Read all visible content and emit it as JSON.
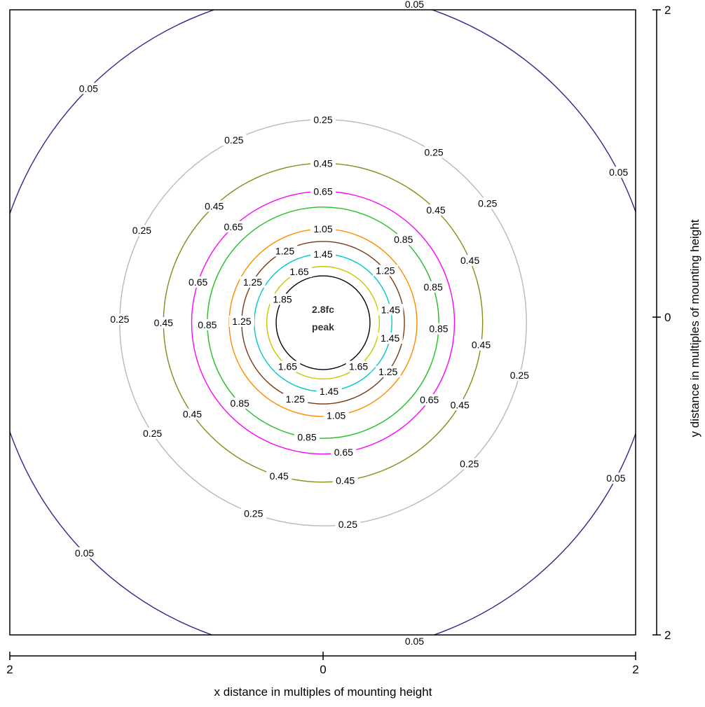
{
  "chart_data": {
    "type": "contour",
    "title": "",
    "xlabel": "x distance in multiples of mounting height",
    "ylabel": "y distance in multiples of mounting height",
    "xlim": [
      -2,
      2
    ],
    "ylim": [
      -2,
      2
    ],
    "x_tick_labels": [
      "2",
      "0",
      "2"
    ],
    "y_tick_labels": [
      "2",
      "0",
      "2"
    ],
    "grid": false,
    "legend": "none",
    "peak": {
      "value_text": "2.8fc",
      "label_text": "peak"
    },
    "levels": [
      {
        "value": 0.05,
        "radius": 2.12,
        "color": "#3f1f8f",
        "labels": [
          {
            "text": "0.05",
            "angle": 135
          },
          {
            "text": "0.05",
            "angle": 74
          },
          {
            "text": "0.05",
            "angle": 27
          },
          {
            "text": "0.05",
            "angle": -28
          },
          {
            "text": "0.05",
            "angle": -74
          },
          {
            "text": "0.05",
            "angle": -136
          }
        ]
      },
      {
        "value": 0.25,
        "radius": 1.3,
        "color": "#b8b8b8",
        "labels": [
          {
            "text": "0.25",
            "angle": 90
          },
          {
            "text": "0.25",
            "angle": 116
          },
          {
            "text": "0.25",
            "angle": 57
          },
          {
            "text": "0.25",
            "angle": 153
          },
          {
            "text": "0.25",
            "angle": 36
          },
          {
            "text": "0.25",
            "angle": 179
          },
          {
            "text": "0.25",
            "angle": -15
          },
          {
            "text": "0.25",
            "angle": -147
          },
          {
            "text": "0.25",
            "angle": -44
          },
          {
            "text": "0.25",
            "angle": -110
          },
          {
            "text": "0.25",
            "angle": -83
          }
        ]
      },
      {
        "value": 0.45,
        "radius": 1.02,
        "color": "#8a8a1a",
        "labels": [
          {
            "text": "0.45",
            "angle": 90
          },
          {
            "text": "0.45",
            "angle": 133
          },
          {
            "text": "0.45",
            "angle": 45
          },
          {
            "text": "0.45",
            "angle": 23
          },
          {
            "text": "0.45",
            "angle": -180
          },
          {
            "text": "0.45",
            "angle": -8
          },
          {
            "text": "0.45",
            "angle": -145
          },
          {
            "text": "0.45",
            "angle": -31
          },
          {
            "text": "0.45",
            "angle": -106
          },
          {
            "text": "0.45",
            "angle": -82
          }
        ]
      },
      {
        "value": 0.65,
        "radius": 0.84,
        "color": "#ff00ff",
        "labels": [
          {
            "text": "0.65",
            "angle": 90
          },
          {
            "text": "0.65",
            "angle": 133
          },
          {
            "text": "0.65",
            "angle": 162
          },
          {
            "text": "0.65",
            "angle": -36
          },
          {
            "text": "0.65",
            "angle": -81
          }
        ]
      },
      {
        "value": 0.85,
        "radius": 0.74,
        "color": "#22c022",
        "labels": [
          {
            "text": "0.85",
            "angle": 46
          },
          {
            "text": "0.85",
            "angle": 18
          },
          {
            "text": "0.85",
            "angle": -179
          },
          {
            "text": "0.85",
            "angle": -3
          },
          {
            "text": "0.85",
            "angle": -136
          },
          {
            "text": "0.85",
            "angle": -98
          }
        ]
      },
      {
        "value": 1.05,
        "radius": 0.6,
        "color": "#ff8c00",
        "labels": [
          {
            "text": "1.05",
            "angle": 90
          },
          {
            "text": "1.05",
            "angle": -82
          }
        ]
      },
      {
        "value": 1.25,
        "radius": 0.52,
        "color": "#7a3a10",
        "labels": [
          {
            "text": "1.25",
            "angle": 118
          },
          {
            "text": "1.25",
            "angle": 40
          },
          {
            "text": "1.25",
            "angle": 150
          },
          {
            "text": "1.25",
            "angle": 179
          },
          {
            "text": "1.25",
            "angle": -110
          },
          {
            "text": "1.25",
            "angle": -37
          }
        ]
      },
      {
        "value": 1.45,
        "radius": 0.44,
        "color": "#00c8c8",
        "labels": [
          {
            "text": "1.45",
            "angle": 90
          },
          {
            "text": "1.45",
            "angle": 11
          },
          {
            "text": "1.45",
            "angle": -13
          },
          {
            "text": "1.45",
            "angle": -85
          }
        ]
      },
      {
        "value": 1.65,
        "radius": 0.36,
        "color": "#c8c800",
        "labels": [
          {
            "text": "1.65",
            "angle": 115
          },
          {
            "text": "1.65",
            "angle": -129
          },
          {
            "text": "1.65",
            "angle": -51
          }
        ]
      },
      {
        "value": 1.85,
        "radius": 0.3,
        "color": "#000000",
        "labels": [
          {
            "text": "1.85",
            "angle": 150
          }
        ]
      }
    ]
  }
}
